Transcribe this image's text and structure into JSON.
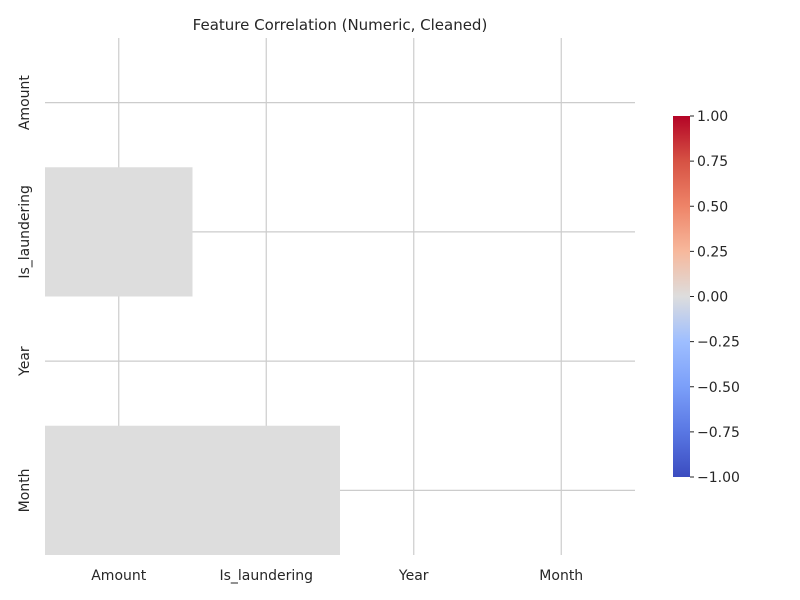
{
  "chart_data": {
    "type": "heatmap",
    "title": "Feature Correlation (Numeric, Cleaned)",
    "xlabel": "",
    "ylabel": "",
    "x_categories": [
      "Amount",
      "Is_laundering",
      "Year",
      "Month"
    ],
    "y_categories": [
      "Amount",
      "Is_laundering",
      "Year",
      "Month"
    ],
    "mask": "upper_triangle_and_diagonal",
    "cells": [
      {
        "row": "Is_laundering",
        "col": "Amount",
        "value": 0.0
      },
      {
        "row": "Month",
        "col": "Amount",
        "value": 0.0
      },
      {
        "row": "Month",
        "col": "Is_laundering",
        "value": 0.0
      }
    ],
    "colormap": "coolwarm",
    "colors": {
      "min": "#3b4cc0",
      "mid": "#dddddd",
      "max": "#b40426",
      "grid": "#cccccc"
    },
    "vmin": -1.0,
    "vmax": 1.0,
    "colorbar": {
      "ticks": [
        1.0,
        0.75,
        0.5,
        0.25,
        0.0,
        -0.25,
        -0.5,
        -0.75,
        -1.0
      ],
      "tick_labels": [
        "1.00",
        "0.75",
        "0.50",
        "0.25",
        "0.00",
        "−0.25",
        "−0.50",
        "−0.75",
        "−1.00"
      ]
    },
    "grid": true
  }
}
